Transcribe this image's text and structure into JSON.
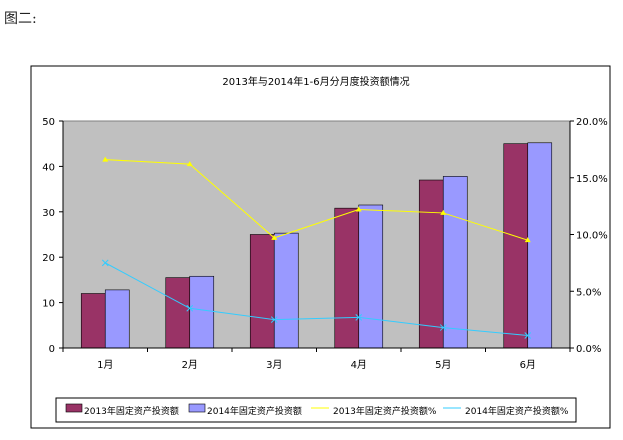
{
  "caption": "图二:",
  "chart_data": {
    "type": "bar",
    "title": "2013年与2014年1-6月分月度投资额情况",
    "categories": [
      "1月",
      "2月",
      "3月",
      "4月",
      "5月",
      "6月"
    ],
    "ylim_left": [
      0,
      50
    ],
    "yticks_left": [
      "0",
      "10",
      "20",
      "30",
      "40",
      "50"
    ],
    "ylim_right": [
      0,
      20
    ],
    "yticks_right": [
      "0.0%",
      "5.0%",
      "10.0%",
      "15.0%",
      "20.0%"
    ],
    "series": [
      {
        "name": "2013年固定资产投资额",
        "kind": "bar",
        "axis": "left",
        "color": "#993366",
        "values": [
          12,
          15.5,
          25,
          30.8,
          37,
          45
        ]
      },
      {
        "name": "2014年固定资产投资额",
        "kind": "bar",
        "axis": "left",
        "color": "#9999ff",
        "values": [
          12.8,
          15.8,
          25.3,
          31.5,
          37.8,
          45.2
        ]
      },
      {
        "name": "2013年固定资产投资额%",
        "kind": "line",
        "axis": "right",
        "color": "#ffff00",
        "values": [
          16.6,
          16.2,
          9.7,
          12.2,
          11.9,
          9.5
        ]
      },
      {
        "name": "2014年固定资产投资额%",
        "kind": "line",
        "axis": "right",
        "color": "#33ccff",
        "values": [
          7.5,
          3.5,
          2.5,
          2.7,
          1.8,
          1.1
        ]
      }
    ],
    "grid": false,
    "plot_background": "#c0c0c0",
    "legend_position": "bottom"
  }
}
